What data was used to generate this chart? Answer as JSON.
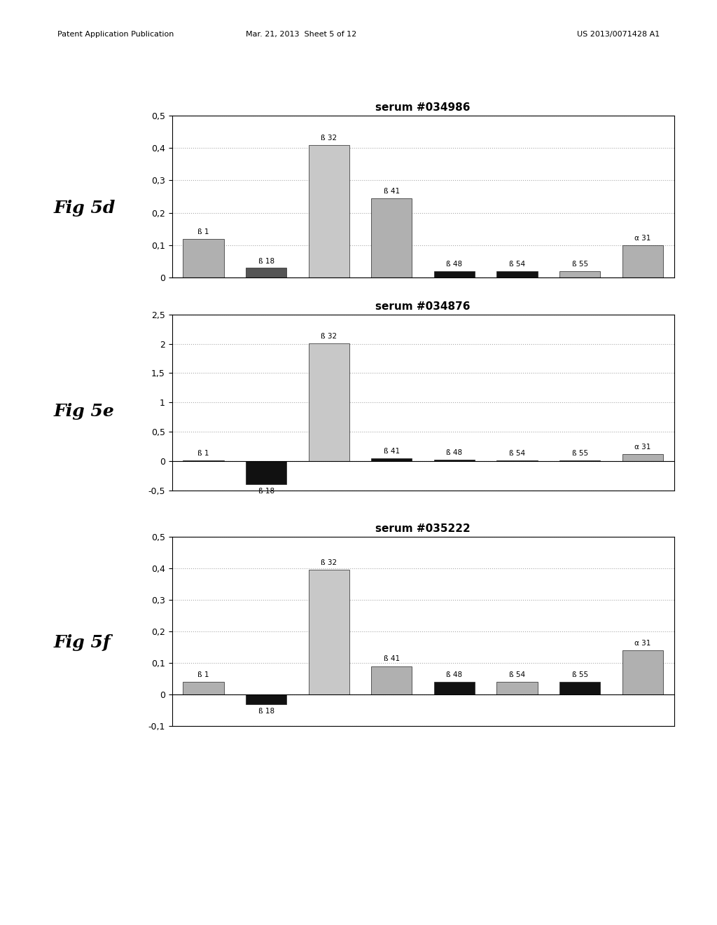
{
  "charts": [
    {
      "fig_label": "Fig 5d",
      "title": "serum #034986",
      "categories": [
        "ß 1",
        "ß 18",
        "ß 32",
        "ß 41",
        "ß 48",
        "ß 54",
        "ß 55",
        "α 31"
      ],
      "values": [
        0.12,
        0.03,
        0.41,
        0.245,
        0.02,
        0.02,
        0.02,
        0.1
      ],
      "colors": [
        "#b0b0b0",
        "#555555",
        "#c8c8c8",
        "#b0b0b0",
        "#111111",
        "#111111",
        "#b0b0b0",
        "#b0b0b0"
      ],
      "ylim": [
        0,
        0.5
      ],
      "yticks": [
        0,
        0.1,
        0.2,
        0.3,
        0.4,
        0.5
      ],
      "ytick_labels": [
        "0",
        "0,1",
        "0,2",
        "0,3",
        "0,4",
        "0,5"
      ]
    },
    {
      "fig_label": "Fig 5e",
      "title": "serum #034876",
      "categories": [
        "ß 1",
        "ß 18",
        "ß 32",
        "ß 41",
        "ß 48",
        "ß 54",
        "ß 55",
        "α 31"
      ],
      "values": [
        0.01,
        -0.4,
        2.01,
        0.05,
        0.02,
        0.01,
        0.01,
        0.12
      ],
      "colors": [
        "#111111",
        "#111111",
        "#c8c8c8",
        "#111111",
        "#111111",
        "#111111",
        "#111111",
        "#b0b0b0"
      ],
      "ylim": [
        -0.5,
        2.5
      ],
      "yticks": [
        -0.5,
        0,
        0.5,
        1.0,
        1.5,
        2.0,
        2.5
      ],
      "ytick_labels": [
        "-0,5",
        "0",
        "0,5",
        "1",
        "1,5",
        "2",
        "2,5"
      ]
    },
    {
      "fig_label": "Fig 5f",
      "title": "serum #035222",
      "categories": [
        "ß 1",
        "ß 18",
        "ß 32",
        "ß 41",
        "ß 48",
        "ß 54",
        "ß 55",
        "α 31"
      ],
      "values": [
        0.04,
        -0.03,
        0.395,
        0.09,
        0.04,
        0.04,
        0.04,
        0.14
      ],
      "colors": [
        "#b0b0b0",
        "#111111",
        "#c8c8c8",
        "#b0b0b0",
        "#111111",
        "#b0b0b0",
        "#111111",
        "#b0b0b0"
      ],
      "ylim": [
        -0.1,
        0.5
      ],
      "yticks": [
        -0.1,
        0,
        0.1,
        0.2,
        0.3,
        0.4,
        0.5
      ],
      "ytick_labels": [
        "-0,1",
        "0",
        "0,1",
        "0,2",
        "0,3",
        "0,4",
        "0,5"
      ]
    }
  ],
  "header_left": "Patent Application Publication",
  "header_mid": "Mar. 21, 2013  Sheet 5 of 12",
  "header_right": "US 2013/0071428 A1",
  "background_color": "#ffffff",
  "bar_width": 0.65,
  "grid_color": "#aaaaaa",
  "grid_linestyle": ":"
}
